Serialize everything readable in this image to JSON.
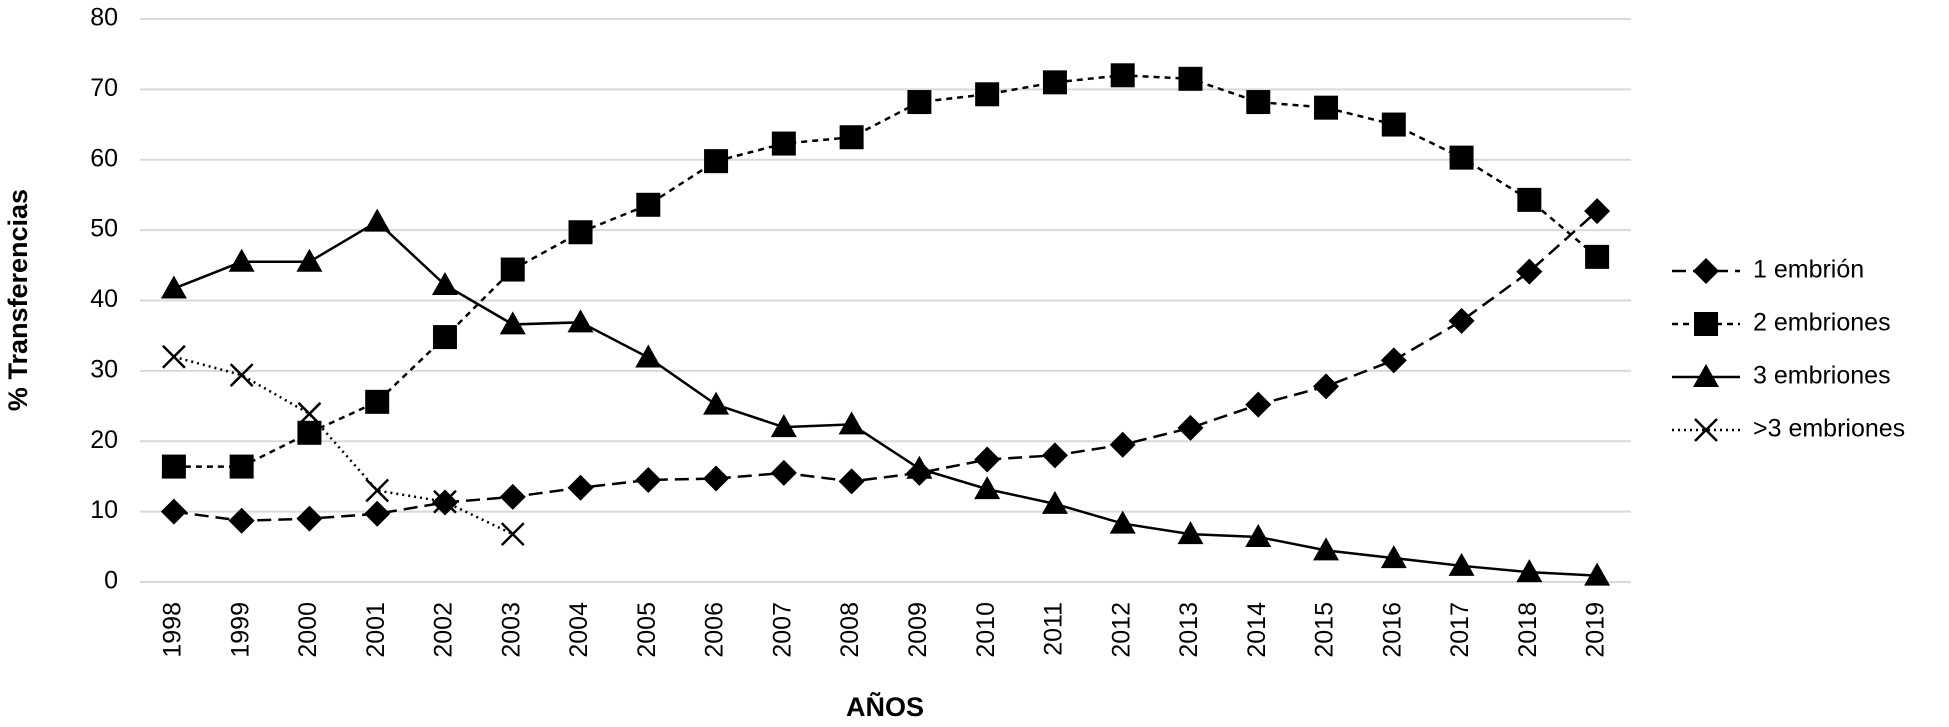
{
  "chart_data": {
    "type": "line",
    "xlabel": "AÑOS",
    "ylabel": "% Transferencias",
    "categories": [
      "1998",
      "1999",
      "2000",
      "2001",
      "2002",
      "2003",
      "2004",
      "2005",
      "2006",
      "2007",
      "2008",
      "2009",
      "2010",
      "2011",
      "2012",
      "2013",
      "2014",
      "2015",
      "2016",
      "2017",
      "2018",
      "2019"
    ],
    "series": [
      {
        "name": "1 embrión",
        "color": "#000000",
        "line_style": "dashed",
        "marker": "diamond",
        "values": [
          10,
          8.7,
          9,
          9.7,
          11.3,
          12.1,
          13.4,
          14.5,
          14.7,
          15.5,
          14.3,
          15.5,
          17.4,
          18,
          19.5,
          21.9,
          25.2,
          27.8,
          31.5,
          37.1,
          44.1,
          52.7
        ]
      },
      {
        "name": "2 embriones",
        "color": "#000000",
        "line_style": "short-dashed",
        "marker": "square",
        "values": [
          16.4,
          16.4,
          21.2,
          25.6,
          34.8,
          44.4,
          49.7,
          53.6,
          59.8,
          62.3,
          63.2,
          68.2,
          69.3,
          71,
          72,
          71.5,
          68.2,
          67.4,
          65,
          60.3,
          54.3,
          46.2
        ]
      },
      {
        "name": "3 embriones",
        "color": "#000000",
        "line_style": "solid",
        "marker": "triangle",
        "values": [
          41.7,
          45.5,
          45.5,
          51.2,
          42.2,
          36.6,
          36.9,
          31.9,
          25.2,
          22,
          22.4,
          16.1,
          13.2,
          11.1,
          8.3,
          6.8,
          6.4,
          4.5,
          3.4,
          2.3,
          1.4,
          0.9
        ]
      },
      {
        "name": ">3 embriones",
        "color": "#000000",
        "line_style": "dotted",
        "marker": "x",
        "values": [
          32,
          29.4,
          23.9,
          13,
          11.4,
          6.8,
          null,
          null,
          null,
          null,
          null,
          null,
          null,
          null,
          null,
          null,
          null,
          null,
          null,
          null,
          null,
          null
        ]
      }
    ],
    "ylim": [
      0,
      80
    ],
    "yticks": [
      0,
      10,
      20,
      30,
      40,
      50,
      60,
      70,
      80
    ],
    "grid": true,
    "grid_color": "#d9d9d9",
    "legend": "right"
  }
}
